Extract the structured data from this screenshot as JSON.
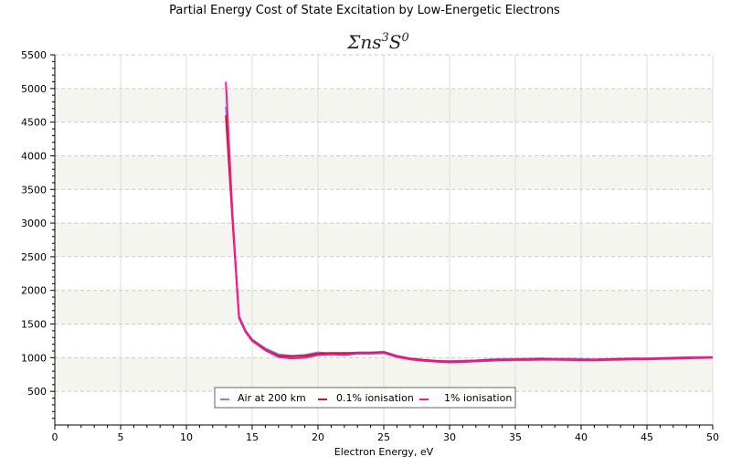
{
  "chart_data": {
    "type": "line",
    "title": "Partial Energy Cost of State Excitation by Low-Energetic Electrons",
    "subtitle": {
      "base1": "Σns",
      "sup1": "3",
      "base2": "S",
      "sup2": "0"
    },
    "xlabel": "Electron Energy, eV",
    "ylabel": "",
    "xlim": [
      0,
      50
    ],
    "ylim": [
      0,
      5500
    ],
    "x_ticks": [
      0,
      5,
      10,
      15,
      20,
      25,
      30,
      35,
      40,
      45,
      50
    ],
    "x_tick_labels": [
      "0",
      "5",
      "10",
      "15",
      "20",
      "25",
      "30",
      "35",
      "40",
      "45",
      "50"
    ],
    "y_ticks": [
      500,
      1000,
      1500,
      2000,
      2500,
      3000,
      3500,
      4000,
      4500,
      5000,
      5500
    ],
    "y_tick_labels": [
      "500",
      "1000",
      "1500",
      "2000",
      "2500",
      "3000",
      "3500",
      "4000",
      "4500",
      "5000",
      "5500"
    ],
    "grid": true,
    "shaded_bands": [
      [
        500,
        1000
      ],
      [
        1500,
        2000
      ],
      [
        2500,
        3000
      ],
      [
        3500,
        4000
      ],
      [
        4500,
        5000
      ]
    ],
    "legend_position": "bottom-center",
    "x": [
      13,
      13.5,
      14,
      14.5,
      15,
      16,
      17,
      18,
      19,
      20,
      21,
      22,
      23,
      24,
      25,
      26,
      27,
      28,
      29,
      30,
      31,
      32,
      33,
      34,
      35,
      36,
      37,
      38,
      39,
      40,
      41,
      42,
      43,
      44,
      45,
      46,
      47,
      48,
      49,
      50
    ],
    "series": [
      {
        "name": "Air at 200 km",
        "color": "#6495ed",
        "values": [
          4730,
          3100,
          1620,
          1400,
          1270,
          1140,
          1050,
          1030,
          1040,
          1080,
          1060,
          1060,
          1080,
          1080,
          1090,
          1030,
          990,
          970,
          955,
          950,
          955,
          960,
          975,
          980,
          980,
          985,
          990,
          985,
          985,
          980,
          975,
          980,
          985,
          990,
          990,
          995,
          1000,
          1005,
          1010,
          1010
        ]
      },
      {
        "name": "0.1% ionisation",
        "color": "#b22222",
        "values": [
          4600,
          3050,
          1600,
          1390,
          1260,
          1120,
          1030,
          1020,
          1030,
          1060,
          1070,
          1070,
          1070,
          1070,
          1080,
          1020,
          985,
          965,
          950,
          940,
          945,
          955,
          965,
          970,
          975,
          975,
          980,
          975,
          975,
          970,
          970,
          975,
          980,
          985,
          985,
          990,
          995,
          1000,
          1000,
          1005
        ]
      },
      {
        "name": "1% ionisation",
        "color": "#ff1493",
        "values": [
          5100,
          3150,
          1590,
          1380,
          1250,
          1110,
          1010,
          990,
          1000,
          1040,
          1050,
          1040,
          1060,
          1060,
          1070,
          1010,
          975,
          955,
          940,
          930,
          935,
          945,
          955,
          960,
          965,
          965,
          970,
          970,
          965,
          960,
          960,
          965,
          970,
          975,
          975,
          980,
          985,
          990,
          995,
          1000
        ]
      }
    ]
  }
}
